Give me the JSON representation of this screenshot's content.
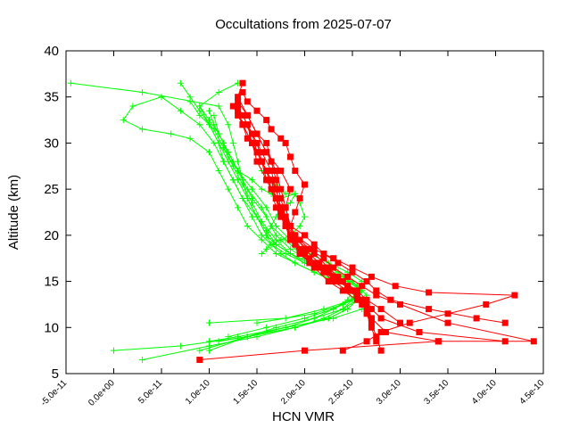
{
  "chart_data": {
    "type": "line",
    "title": "Occultations from 2025-07-07",
    "xlabel": "HCN VMR",
    "ylabel": "Altitude (km)",
    "xlim": [
      -5e-11,
      4.5e-10
    ],
    "ylim": [
      5,
      40
    ],
    "x_ticks": [
      -5e-11,
      0,
      5e-11,
      1e-10,
      1.5e-10,
      2e-10,
      2.5e-10,
      3e-10,
      3.5e-10,
      4e-10,
      4.5e-10
    ],
    "x_tick_labels": [
      "-5.0e-11",
      "0.0e+00",
      "5.0e-11",
      "1.0e-10",
      "1.5e-10",
      "2.0e-10",
      "2.5e-10",
      "3.0e-10",
      "3.5e-10",
      "4.0e-10",
      "4.5e-10"
    ],
    "y_ticks": [
      5,
      10,
      15,
      20,
      25,
      30,
      35,
      40
    ],
    "y_tick_labels": [
      "5",
      "10",
      "15",
      "20",
      "25",
      "30",
      "35",
      "40"
    ],
    "grid": false,
    "legend": "none",
    "colors": {
      "red_series": "#ff0000",
      "green_series": "#00ff00",
      "border": "#000000"
    },
    "markers": {
      "red_series": "filled-square",
      "green_series": "plus"
    },
    "series": [
      {
        "color": "red",
        "x": [
          1.35e-10,
          1.3e-10,
          1.4e-10,
          1.5e-10,
          1.6e-10,
          1.7e-10,
          1.75e-10,
          1.8e-10,
          1.85e-10,
          2e-10,
          2.1e-10,
          2.2e-10,
          2.35e-10,
          2.5e-10,
          2.65e-10,
          2.75e-10,
          2.9e-10,
          3.3e-10,
          3.8e-10,
          4.1e-10
        ],
        "y": [
          36.5,
          35,
          33,
          31,
          29,
          27,
          25,
          23,
          21,
          20,
          19,
          18,
          17,
          16,
          15,
          14,
          13,
          12,
          11,
          10.5
        ]
      },
      {
        "color": "red",
        "x": [
          4.1e-10,
          3.2e-10,
          2.8e-10,
          2.7e-10,
          2.6e-10,
          2.45e-10,
          2.3e-10,
          2.15e-10,
          2e-10,
          1.9e-10,
          1.8e-10,
          1.7e-10,
          1.65e-10,
          1.6e-10,
          1.5e-10,
          1.45e-10,
          1.3e-10
        ],
        "y": [
          8.5,
          9.5,
          11,
          12,
          13,
          14,
          15,
          16.5,
          18,
          19.5,
          21,
          23,
          25,
          27,
          29,
          31,
          33
        ]
      },
      {
        "color": "red",
        "x": [
          3.4e-10,
          2.85e-10,
          2.7e-10,
          2.65e-10,
          2.55e-10,
          2.4e-10,
          2.25e-10,
          2.1e-10,
          1.95e-10,
          1.85e-10,
          1.75e-10,
          1.7e-10,
          1.65e-10,
          1.55e-10,
          1.45e-10,
          1.35e-10,
          1.25e-10
        ],
        "y": [
          8.5,
          9.5,
          11,
          12,
          13,
          14,
          15,
          16.5,
          18,
          20,
          22,
          24,
          26,
          28,
          30,
          32,
          34
        ]
      },
      {
        "color": "red",
        "x": [
          2.75e-10,
          2.7e-10,
          2.65e-10,
          2.6e-10,
          2.5e-10,
          2.35e-10,
          2.2e-10,
          2.05e-10,
          1.9e-10,
          1.85e-10,
          1.8e-10,
          1.85e-10,
          1.75e-10,
          1.6e-10,
          1.5e-10,
          1.4e-10
        ],
        "y": [
          8.5,
          10,
          11.5,
          13,
          14,
          15,
          16,
          17,
          19,
          21,
          23,
          25,
          27,
          29,
          31,
          33
        ]
      },
      {
        "color": "red",
        "x": [
          2.8e-10,
          2.75e-10,
          2.7e-10,
          2.65e-10,
          2.55e-10,
          2.4e-10,
          2.25e-10,
          2.1e-10,
          1.95e-10,
          1.8e-10,
          1.75e-10,
          1.7e-10,
          1.65e-10,
          1.55e-10,
          1.5e-10,
          1.4e-10,
          1.3e-10
        ],
        "y": [
          7.5,
          9,
          10.5,
          12,
          13.5,
          15,
          16.5,
          18,
          19.5,
          21,
          22.5,
          24,
          26,
          28,
          30,
          32,
          34
        ]
      },
      {
        "color": "red",
        "x": [
          2.4e-10,
          2.65e-10,
          2.8e-10,
          3.1e-10,
          3.5e-10,
          3.9e-10,
          4.2e-10,
          3.3e-10,
          2.95e-10,
          2.7e-10,
          2.5e-10,
          2.3e-10,
          2.1e-10,
          1.9e-10,
          1.8e-10,
          1.7e-10,
          1.6e-10,
          1.5e-10,
          1.45e-10,
          1.35e-10
        ],
        "y": [
          7.5,
          8.5,
          9.5,
          10.5,
          11.5,
          12.5,
          13.5,
          13.8,
          14.5,
          15.5,
          16.5,
          17.5,
          18.5,
          20,
          22,
          24,
          26,
          28,
          30,
          32
        ]
      },
      {
        "color": "red",
        "x": [
          9e-11,
          2e-10,
          3.4e-10,
          4.4e-10,
          3.5e-10,
          3e-10,
          2.75e-10,
          2.6e-10,
          2.45e-10,
          2.3e-10,
          2.2e-10,
          2.05e-10,
          1.9e-10,
          1.8e-10,
          1.75e-10,
          1.7e-10,
          1.65e-10,
          1.55e-10,
          1.45e-10,
          1.35e-10
        ],
        "y": [
          6.5,
          7.5,
          8.5,
          8.5,
          10.5,
          12.5,
          13.5,
          14.5,
          15.5,
          16.5,
          17.5,
          18.5,
          19.5,
          21,
          23,
          25,
          27,
          29,
          31,
          33
        ]
      },
      {
        "color": "red",
        "x": [
          2.7e-10,
          2.65e-10,
          2.55e-10,
          2.45e-10,
          2.3e-10,
          2.15e-10,
          2e-10,
          1.9e-10,
          1.8e-10,
          1.75e-10,
          1.7e-10,
          1.65e-10,
          1.6e-10,
          1.5e-10,
          1.4e-10,
          1.3e-10
        ],
        "y": [
          11,
          12.5,
          13.5,
          14.5,
          15.5,
          17,
          18.5,
          20,
          22,
          24,
          26,
          28,
          30,
          31,
          33,
          34.5
        ]
      },
      {
        "color": "red",
        "x": [
          2.6e-10,
          2.55e-10,
          2.45e-10,
          2.35e-10,
          2.2e-10,
          2.05e-10,
          1.95e-10,
          1.85e-10,
          1.8e-10,
          1.75e-10,
          1.7e-10,
          1.6e-10,
          1.5e-10,
          1.4e-10,
          1.35e-10,
          1.3e-10
        ],
        "y": [
          12.5,
          13.5,
          14.5,
          15.5,
          16.5,
          17.5,
          18.5,
          20,
          21.5,
          23,
          25,
          27,
          29,
          30.5,
          32,
          33.5
        ]
      },
      {
        "color": "red",
        "x": [
          3e-10,
          2.8e-10,
          2.65e-10,
          2.55e-10,
          2.4e-10,
          2.25e-10,
          2.1e-10,
          1.95e-10,
          1.85e-10,
          1.8e-10,
          1.75e-10,
          1.7e-10,
          1.6e-10,
          1.55e-10,
          1.45e-10,
          1.4e-10
        ],
        "y": [
          10.5,
          12,
          13,
          14,
          15,
          16,
          17,
          18,
          19.5,
          21,
          22.5,
          24,
          26,
          28,
          30,
          32
        ]
      },
      {
        "color": "red",
        "x": [
          1.85e-10,
          1.9e-10,
          1.95e-10,
          2e-10,
          1.9e-10,
          1.85e-10,
          1.8e-10,
          1.75e-10,
          1.65e-10,
          1.6e-10,
          1.5e-10,
          1.4e-10,
          1.35e-10
        ],
        "y": [
          21,
          22.5,
          24,
          25.5,
          27,
          28.5,
          30,
          30.5,
          31.5,
          32.5,
          33.5,
          34.5,
          35.5
        ]
      },
      {
        "color": "green",
        "x": [
          -4.5e-11,
          3e-11,
          1.1e-10,
          1.2e-10,
          1.25e-10,
          1.3e-10,
          1.35e-10,
          1.4e-10,
          1.5e-10,
          1.6e-10,
          1.65e-10,
          1.75e-10,
          1.9e-10,
          2.1e-10,
          2.3e-10,
          2.45e-10,
          2.5e-10,
          2.4e-10,
          2.2e-10,
          1.9e-10,
          1.5e-10,
          1e-10,
          3e-11
        ],
        "y": [
          36.5,
          35.5,
          34,
          32,
          30,
          28,
          26,
          24,
          22,
          20,
          19,
          18,
          17,
          16,
          15,
          14,
          13,
          12,
          11,
          10,
          9,
          8,
          6.5
        ]
      },
      {
        "color": "green",
        "x": [
          1.3e-10,
          1.1e-10,
          9e-11,
          1e-10,
          1.1e-10,
          1.2e-10,
          1.3e-10,
          1.4e-10,
          1.5e-10,
          1.6e-10,
          1.7e-10,
          1.85e-10,
          2e-10,
          2.2e-10,
          2.4e-10,
          2.5e-10,
          2.55e-10,
          2.45e-10,
          2.25e-10,
          1.9e-10,
          1.4e-10,
          7e-11,
          0
        ],
        "y": [
          36.5,
          35.5,
          34,
          32,
          30,
          28,
          26,
          24,
          22,
          20,
          19,
          18,
          17,
          16,
          15,
          14,
          13,
          12,
          11,
          10,
          9,
          8,
          7.5
        ]
      },
      {
        "color": "green",
        "x": [
          7e-11,
          8e-11,
          9e-11,
          1e-10,
          1.1e-10,
          1.15e-10,
          1.25e-10,
          1.35e-10,
          1.45e-10,
          1.55e-10,
          1.65e-10,
          1.8e-10,
          2e-10,
          2.2e-10,
          2.4e-10,
          2.5e-10,
          2.45e-10,
          2.3e-10,
          2.1e-10,
          1.8e-10,
          1.4e-10,
          1e-10
        ],
        "y": [
          36.5,
          35,
          33.5,
          32,
          30,
          28,
          26,
          24,
          22,
          20,
          19,
          18,
          17,
          16,
          15,
          14,
          13,
          12,
          11,
          10,
          9,
          7.5
        ]
      },
      {
        "color": "green",
        "x": [
          5e-11,
          2e-11,
          1e-11,
          3e-11,
          6e-11,
          8e-11,
          1e-10,
          1.1e-10,
          1.2e-10,
          1.3e-10,
          1.4e-10,
          1.55e-10,
          1.7e-10,
          1.9e-10,
          2.1e-10,
          2.35e-10,
          2.5e-10,
          2.55e-10,
          2.45e-10,
          2.25e-10,
          1.9e-10,
          1.4e-10,
          9e-11
        ],
        "y": [
          35,
          34,
          32.5,
          31.5,
          31,
          30.5,
          29,
          27,
          25,
          23,
          21,
          19.5,
          18,
          17,
          16,
          15,
          14,
          13,
          12,
          11,
          10,
          9,
          7.5
        ]
      },
      {
        "color": "green",
        "x": [
          5e-11,
          7e-11,
          9e-11,
          1.05e-10,
          1.15e-10,
          1.25e-10,
          1.35e-10,
          1.5e-10,
          1.6e-10,
          1.7e-10,
          1.85e-10,
          2.05e-10,
          2.25e-10,
          2.45e-10,
          2.6e-10,
          2.55e-10,
          2.4e-10,
          2.1e-10,
          1.7e-10,
          1.4e-10,
          1.1e-10
        ],
        "y": [
          35,
          33.5,
          32,
          30,
          28,
          26,
          24,
          22,
          20.5,
          19,
          18,
          17,
          16,
          15,
          14,
          13,
          12,
          11,
          10,
          9,
          8.5
        ]
      },
      {
        "color": "green",
        "x": [
          8e-11,
          9e-11,
          1.05e-10,
          1.15e-10,
          1.25e-10,
          1.35e-10,
          1.45e-10,
          1.55e-10,
          1.7e-10,
          1.85e-10,
          2.05e-10,
          2.25e-10,
          2.45e-10,
          2.6e-10,
          2.5e-10,
          2.3e-10,
          2e-10,
          1.6e-10,
          1.2e-10
        ],
        "y": [
          34.5,
          33,
          31.5,
          29.5,
          27.5,
          25.5,
          23.5,
          21.5,
          19.5,
          18,
          17,
          16,
          15,
          14,
          13,
          12,
          11,
          10,
          9
        ]
      },
      {
        "color": "green",
        "x": [
          9e-11,
          1e-10,
          1.1e-10,
          1.2e-10,
          1.3e-10,
          1.4e-10,
          1.55e-10,
          1.65e-10,
          1.8e-10,
          1.95e-10,
          2.15e-10,
          2.35e-10,
          2.5e-10,
          2.65e-10,
          2.6e-10,
          2.3e-10,
          1.8e-10,
          1.3e-10,
          1e-10
        ],
        "y": [
          34,
          32.5,
          31,
          29,
          27,
          25,
          23,
          21,
          19.5,
          18,
          17,
          16,
          15,
          13.5,
          12,
          11,
          10,
          9,
          8.5
        ]
      },
      {
        "color": "green",
        "x": [
          1e-10,
          1.05e-10,
          1.15e-10,
          1.25e-10,
          1.35e-10,
          1.45e-10,
          1.6e-10,
          1.7e-10,
          1.85e-10,
          2e-10,
          2.2e-10,
          2.4e-10,
          2.55e-10,
          2.5e-10,
          2.2e-10,
          1.8e-10,
          1e-10
        ],
        "y": [
          33.5,
          32,
          30,
          28,
          26,
          24,
          22,
          20,
          18.5,
          17.5,
          16.5,
          15.5,
          14.5,
          13,
          12,
          11,
          10.5
        ]
      },
      {
        "color": "green",
        "x": [
          1.05e-10,
          1.1e-10,
          1.2e-10,
          1.3e-10,
          1.45e-10,
          1.6e-10,
          1.7e-10,
          1.85e-10,
          2.05e-10,
          2.25e-10,
          2.45e-10,
          2.6e-10,
          2.55e-10,
          2.4e-10,
          2.1e-10,
          1.5e-10
        ],
        "y": [
          33,
          31,
          29,
          27,
          25,
          23,
          21,
          19.5,
          18,
          17,
          16,
          15,
          13.5,
          12.5,
          11.5,
          10.5
        ]
      },
      {
        "color": "green",
        "x": [
          1.15e-10,
          1.2e-10,
          1.3e-10,
          1.45e-10,
          1.55e-10,
          1.65e-10,
          1.75e-10,
          1.9e-10,
          1.95e-10,
          2e-10,
          1.95e-10,
          1.85e-10,
          1.75e-10,
          1.65e-10,
          1.6e-10,
          1.55e-10
        ],
        "y": [
          30,
          28.5,
          27,
          26,
          25,
          24.5,
          24,
          24.5,
          23.5,
          22,
          21,
          20,
          19.5,
          19,
          18.5,
          18
        ]
      },
      {
        "color": "green",
        "x": [
          1.5e-10,
          1.55e-10,
          1.6e-10,
          1.7e-10,
          1.75e-10,
          1.8e-10,
          1.9e-10,
          1.85e-10,
          1.75e-10,
          1.7e-10,
          1.65e-10,
          1.6e-10
        ],
        "y": [
          28,
          27,
          26,
          25.5,
          25,
          24.5,
          24.5,
          23.5,
          23,
          22,
          21,
          20
        ]
      }
    ]
  }
}
